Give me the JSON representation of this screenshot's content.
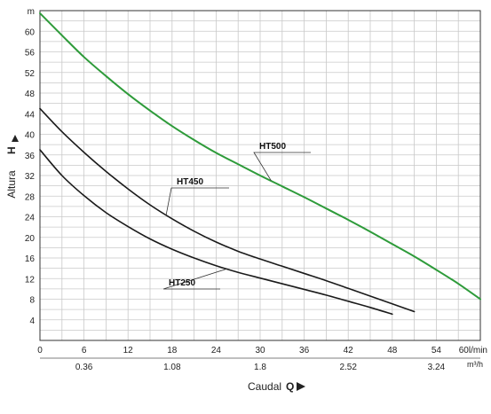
{
  "chart_data": {
    "type": "line",
    "y_axis": {
      "label": "Altura",
      "symbol": "H",
      "unit": "m",
      "ticks": [
        4,
        8,
        12,
        16,
        20,
        24,
        28,
        32,
        36,
        40,
        44,
        48,
        52,
        56,
        60
      ],
      "ylim": [
        0,
        64
      ]
    },
    "x_axis": {
      "label": "Caudal",
      "symbol": "Q",
      "origin_label": "0",
      "unit_lmin": "60l/min",
      "unit_m3h": "m³/h",
      "ticks_lmin": [
        6,
        12,
        18,
        24,
        30,
        36,
        42,
        48,
        54
      ],
      "ticks_m3h": [
        {
          "q": 6,
          "label": "0.36"
        },
        {
          "q": 18,
          "label": "1.08"
        },
        {
          "q": 30,
          "label": "1.8"
        },
        {
          "q": 42,
          "label": "2.52"
        },
        {
          "q": 54,
          "label": "3.24"
        }
      ],
      "xlim": [
        0,
        60
      ]
    },
    "grid": true,
    "series": [
      {
        "name": "HT500",
        "color": "#2e9b3a",
        "x": [
          0,
          3,
          6,
          9,
          12,
          15,
          18,
          21,
          24,
          27,
          30,
          33,
          36,
          39,
          42,
          45,
          48,
          51,
          54,
          57,
          60
        ],
        "y": [
          63.5,
          59.2,
          55.0,
          51.3,
          47.8,
          44.6,
          41.6,
          38.9,
          36.4,
          34.2,
          32.0,
          29.9,
          27.8,
          25.6,
          23.4,
          21.1,
          18.7,
          16.3,
          13.7,
          11.0,
          8.0
        ]
      },
      {
        "name": "HT450",
        "color": "#1a1a1a",
        "x": [
          0,
          3,
          6,
          9,
          12,
          15,
          18,
          21,
          24,
          27,
          30,
          33,
          36,
          39,
          42,
          45,
          48,
          51
        ],
        "y": [
          45.0,
          40.5,
          36.5,
          32.8,
          29.4,
          26.3,
          23.6,
          21.2,
          19.1,
          17.3,
          15.8,
          14.4,
          13.0,
          11.6,
          10.1,
          8.6,
          7.1,
          5.6
        ]
      },
      {
        "name": "HT250",
        "color": "#1a1a1a",
        "x": [
          0,
          3,
          6,
          9,
          12,
          15,
          18,
          21,
          24,
          27,
          30,
          33,
          36,
          39,
          42,
          45,
          48
        ],
        "y": [
          37.0,
          32.0,
          28.1,
          24.8,
          22.1,
          19.7,
          17.7,
          16.0,
          14.5,
          13.2,
          12.1,
          11.0,
          9.9,
          8.8,
          7.6,
          6.4,
          5.1
        ]
      }
    ],
    "annotations": [
      {
        "text": "HT500",
        "series": "HT500",
        "q": 31.5,
        "h": 31.0
      },
      {
        "text": "HT450",
        "series": "HT450",
        "q": 17.2,
        "h": 24.4
      },
      {
        "text": "HT250",
        "series": "HT250",
        "q": 25.5,
        "h": 13.9
      }
    ]
  }
}
